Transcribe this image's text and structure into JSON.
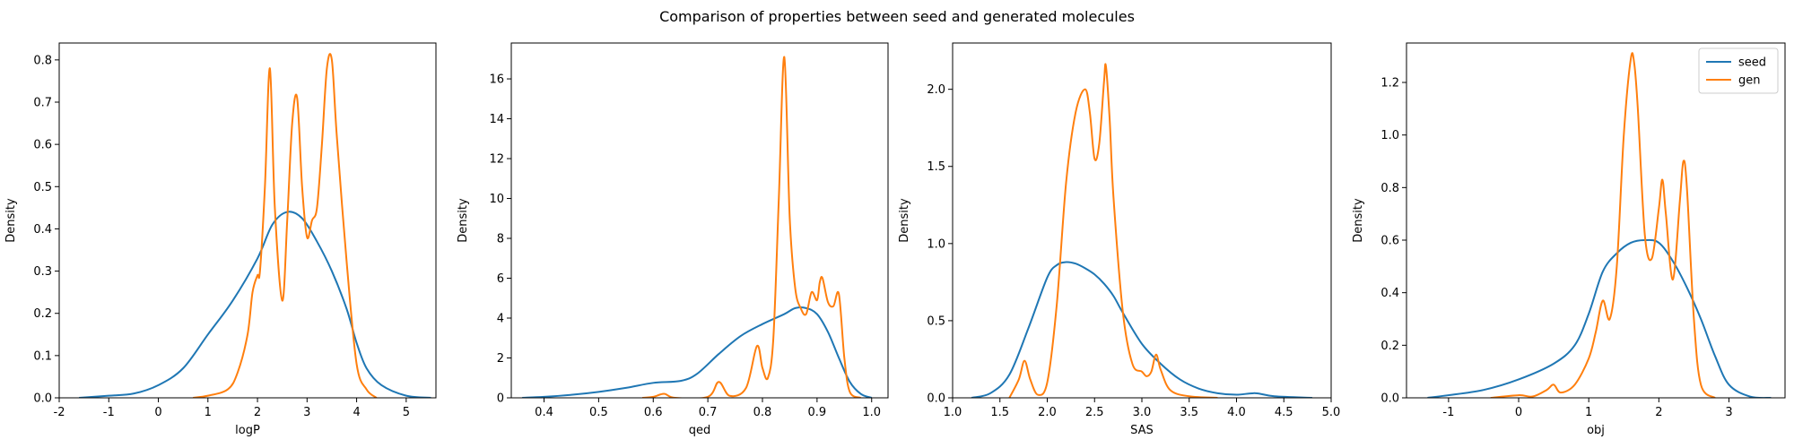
{
  "figure": {
    "suptitle": "Comparison of properties between seed and generated molecules"
  },
  "legend": {
    "entries": [
      {
        "label": "seed",
        "color": "#1f77b4"
      },
      {
        "label": "gen",
        "color": "#ff7f0e"
      }
    ],
    "location": "upper right of last panel"
  },
  "chart_data": [
    {
      "type": "line",
      "xlabel": "logP",
      "ylabel": "Density",
      "xlim": [
        -2,
        5.6
      ],
      "ylim": [
        0,
        0.84
      ],
      "xticks": [
        -2,
        -1,
        0,
        1,
        2,
        3,
        4,
        5
      ],
      "yticks": [
        0.0,
        0.1,
        0.2,
        0.3,
        0.4,
        0.5,
        0.6,
        0.7,
        0.8
      ],
      "ytick_decimals": 1,
      "series": [
        {
          "name": "seed",
          "color": "#1f77b4",
          "x": [
            -1.6,
            -1.0,
            -0.5,
            0.0,
            0.5,
            1.0,
            1.5,
            2.0,
            2.3,
            2.6,
            2.9,
            3.2,
            3.5,
            3.8,
            4.0,
            4.2,
            4.5,
            5.0,
            5.5
          ],
          "y": [
            0.0,
            0.005,
            0.01,
            0.03,
            0.07,
            0.15,
            0.23,
            0.33,
            0.41,
            0.44,
            0.425,
            0.37,
            0.3,
            0.21,
            0.13,
            0.07,
            0.03,
            0.005,
            0.0
          ]
        },
        {
          "name": "gen",
          "color": "#ff7f0e",
          "x": [
            0.7,
            1.0,
            1.4,
            1.6,
            1.8,
            1.9,
            2.0,
            2.05,
            2.15,
            2.25,
            2.35,
            2.5,
            2.6,
            2.7,
            2.8,
            2.9,
            3.0,
            3.1,
            3.2,
            3.3,
            3.4,
            3.5,
            3.6,
            3.8,
            4.0,
            4.2,
            4.4
          ],
          "y": [
            0.0,
            0.005,
            0.02,
            0.06,
            0.15,
            0.25,
            0.29,
            0.3,
            0.5,
            0.78,
            0.45,
            0.23,
            0.42,
            0.65,
            0.71,
            0.5,
            0.38,
            0.42,
            0.45,
            0.6,
            0.78,
            0.8,
            0.62,
            0.32,
            0.08,
            0.02,
            0.0
          ]
        }
      ]
    },
    {
      "type": "line",
      "xlabel": "qed",
      "ylabel": "Density",
      "xlim": [
        0.34,
        1.03
      ],
      "ylim": [
        0,
        17.8
      ],
      "xticks": [
        0.4,
        0.5,
        0.6,
        0.7,
        0.8,
        0.9,
        1.0
      ],
      "yticks": [
        0,
        2,
        4,
        6,
        8,
        10,
        12,
        14,
        16
      ],
      "ytick_decimals": 0,
      "series": [
        {
          "name": "seed",
          "color": "#1f77b4",
          "x": [
            0.36,
            0.4,
            0.45,
            0.5,
            0.55,
            0.6,
            0.65,
            0.68,
            0.72,
            0.76,
            0.8,
            0.84,
            0.86,
            0.88,
            0.9,
            0.92,
            0.94,
            0.96,
            0.98,
            1.0
          ],
          "y": [
            0.0,
            0.05,
            0.15,
            0.3,
            0.5,
            0.75,
            0.85,
            1.2,
            2.2,
            3.1,
            3.7,
            4.2,
            4.5,
            4.5,
            4.2,
            3.3,
            2.0,
            0.8,
            0.2,
            0.0
          ]
        },
        {
          "name": "gen",
          "color": "#ff7f0e",
          "x": [
            0.58,
            0.6,
            0.62,
            0.64,
            0.7,
            0.72,
            0.74,
            0.77,
            0.79,
            0.8,
            0.81,
            0.82,
            0.83,
            0.84,
            0.85,
            0.86,
            0.87,
            0.88,
            0.89,
            0.9,
            0.905,
            0.91,
            0.92,
            0.93,
            0.94,
            0.95,
            0.96,
            0.98
          ],
          "y": [
            0.0,
            0.05,
            0.2,
            0.0,
            0.05,
            0.8,
            0.1,
            0.5,
            2.6,
            1.5,
            1.0,
            3.0,
            10.0,
            17.1,
            9.0,
            5.5,
            4.5,
            4.2,
            5.3,
            4.9,
            5.8,
            6.0,
            4.8,
            4.6,
            5.2,
            2.0,
            0.3,
            0.0
          ]
        }
      ]
    },
    {
      "type": "line",
      "xlabel": "SAS",
      "ylabel": "Density",
      "xlim": [
        1.0,
        5.0
      ],
      "ylim": [
        0,
        2.3
      ],
      "xticks": [
        1.0,
        1.5,
        2.0,
        2.5,
        3.0,
        3.5,
        4.0,
        4.5,
        5.0
      ],
      "yticks": [
        0.0,
        0.5,
        1.0,
        1.5,
        2.0
      ],
      "ytick_decimals": 1,
      "series": [
        {
          "name": "seed",
          "color": "#1f77b4",
          "x": [
            1.2,
            1.4,
            1.6,
            1.8,
            2.0,
            2.1,
            2.2,
            2.3,
            2.4,
            2.5,
            2.6,
            2.7,
            2.8,
            3.0,
            3.2,
            3.4,
            3.6,
            3.8,
            4.0,
            4.2,
            4.4,
            4.8
          ],
          "y": [
            0.0,
            0.03,
            0.15,
            0.45,
            0.78,
            0.86,
            0.88,
            0.87,
            0.84,
            0.8,
            0.74,
            0.66,
            0.55,
            0.35,
            0.22,
            0.12,
            0.06,
            0.03,
            0.02,
            0.03,
            0.01,
            0.0
          ]
        },
        {
          "name": "gen",
          "color": "#ff7f0e",
          "x": [
            1.6,
            1.7,
            1.76,
            1.82,
            1.9,
            2.0,
            2.1,
            2.2,
            2.3,
            2.4,
            2.45,
            2.5,
            2.55,
            2.6,
            2.62,
            2.66,
            2.7,
            2.8,
            2.9,
            3.0,
            3.05,
            3.1,
            3.15,
            3.2,
            3.3,
            3.5,
            3.8
          ],
          "y": [
            0.0,
            0.12,
            0.24,
            0.12,
            0.02,
            0.1,
            0.6,
            1.4,
            1.85,
            2.0,
            1.85,
            1.55,
            1.65,
            2.05,
            2.15,
            1.8,
            1.3,
            0.55,
            0.22,
            0.17,
            0.14,
            0.17,
            0.28,
            0.18,
            0.05,
            0.01,
            0.0
          ]
        }
      ]
    },
    {
      "type": "line",
      "xlabel": "obj",
      "ylabel": "Density",
      "xlim": [
        -1.6,
        3.8
      ],
      "ylim": [
        0,
        1.35
      ],
      "xticks": [
        -1,
        0,
        1,
        2,
        3
      ],
      "yticks": [
        0.0,
        0.2,
        0.4,
        0.6,
        0.8,
        1.0,
        1.2
      ],
      "ytick_decimals": 1,
      "series": [
        {
          "name": "seed",
          "color": "#1f77b4",
          "x": [
            -1.3,
            -1.0,
            -0.5,
            0.0,
            0.5,
            0.8,
            1.0,
            1.2,
            1.4,
            1.6,
            1.8,
            2.0,
            2.2,
            2.4,
            2.6,
            2.8,
            3.0,
            3.3,
            3.6
          ],
          "y": [
            0.0,
            0.01,
            0.03,
            0.07,
            0.13,
            0.2,
            0.32,
            0.48,
            0.55,
            0.59,
            0.6,
            0.59,
            0.52,
            0.42,
            0.3,
            0.16,
            0.05,
            0.005,
            0.0
          ]
        },
        {
          "name": "gen",
          "color": "#ff7f0e",
          "x": [
            -0.4,
            0.0,
            0.2,
            0.4,
            0.5,
            0.6,
            0.8,
            1.0,
            1.1,
            1.2,
            1.3,
            1.4,
            1.5,
            1.6,
            1.65,
            1.7,
            1.8,
            1.9,
            2.0,
            2.05,
            2.1,
            2.2,
            2.3,
            2.35,
            2.4,
            2.5,
            2.6,
            2.8
          ],
          "y": [
            0.0,
            0.01,
            0.005,
            0.03,
            0.05,
            0.02,
            0.05,
            0.15,
            0.25,
            0.37,
            0.3,
            0.5,
            1.0,
            1.29,
            1.27,
            1.1,
            0.62,
            0.53,
            0.72,
            0.83,
            0.7,
            0.45,
            0.75,
            0.9,
            0.8,
            0.3,
            0.05,
            0.0
          ]
        }
      ]
    }
  ]
}
